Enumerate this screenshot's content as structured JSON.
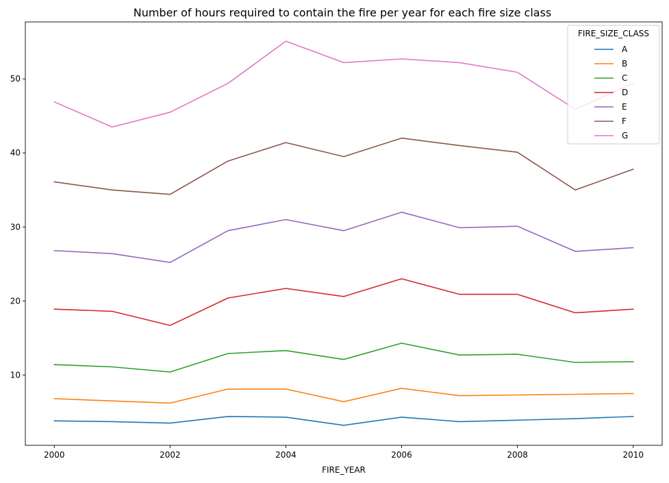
{
  "chart_data": {
    "type": "line",
    "title": "Number of hours required to contain the fire per year for each fire size class",
    "xlabel": "FIRE_YEAR",
    "ylabel": "",
    "x": [
      2000,
      2001,
      2002,
      2003,
      2004,
      2005,
      2006,
      2007,
      2008,
      2009,
      2010
    ],
    "xticks": [
      2000,
      2002,
      2004,
      2006,
      2008,
      2010
    ],
    "yticks": [
      10,
      20,
      30,
      40,
      50
    ],
    "xlim": [
      1999.5,
      2010.5
    ],
    "ylim": [
      0.5,
      57.7
    ],
    "grid": false,
    "legend": {
      "title": "FIRE_SIZE_CLASS",
      "position": "top-right"
    },
    "series": [
      {
        "name": "A",
        "color": "#1f77b4",
        "values": [
          3.8,
          3.7,
          3.5,
          4.4,
          4.3,
          3.2,
          4.3,
          3.7,
          3.9,
          4.1,
          4.4
        ]
      },
      {
        "name": "B",
        "color": "#ff7f0e",
        "values": [
          6.8,
          6.5,
          6.2,
          8.1,
          8.1,
          6.4,
          8.2,
          7.2,
          7.3,
          7.4,
          7.5
        ]
      },
      {
        "name": "C",
        "color": "#2ca02c",
        "values": [
          11.4,
          11.1,
          10.4,
          12.9,
          13.3,
          12.1,
          14.3,
          12.7,
          12.8,
          11.7,
          11.8
        ]
      },
      {
        "name": "D",
        "color": "#d62728",
        "values": [
          18.9,
          18.6,
          16.7,
          20.4,
          21.7,
          20.6,
          23.0,
          20.9,
          20.9,
          18.4,
          18.9
        ]
      },
      {
        "name": "E",
        "color": "#9467bd",
        "values": [
          26.8,
          26.4,
          25.2,
          29.5,
          31.0,
          29.5,
          32.0,
          29.9,
          30.1,
          26.7,
          27.2
        ]
      },
      {
        "name": "F",
        "color": "#8c564b",
        "values": [
          36.1,
          35.0,
          34.4,
          38.9,
          41.4,
          39.5,
          42.0,
          41.0,
          40.1,
          35.0,
          37.8
        ]
      },
      {
        "name": "G",
        "color": "#e377c2",
        "values": [
          46.9,
          43.5,
          45.5,
          49.4,
          55.1,
          52.2,
          52.7,
          52.2,
          50.9,
          45.9,
          49.4
        ]
      }
    ]
  }
}
